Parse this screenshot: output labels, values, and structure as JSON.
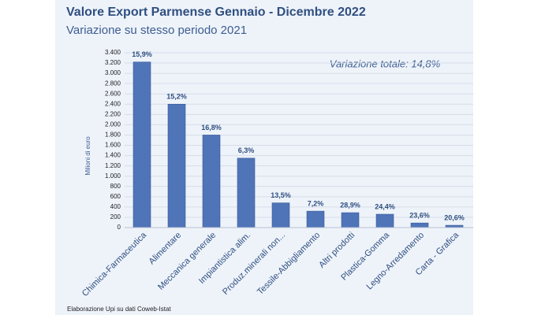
{
  "chart_data": {
    "type": "bar",
    "title": "Valore Export Parmense Gennaio - Dicembre 2022",
    "subtitle": "Variazione su stesso periodo 2021",
    "y_label": "Milioni di euro",
    "annotation": "Variazione totale: 14,8%",
    "source": "Elaborazione Upi su dati Coweb-Istat",
    "categories": [
      "Chimica-Farmaceutica",
      "Alimentare",
      "Meccanica generale",
      "Impiantistica alim.",
      "Produz.minerali non...",
      "Tessile-Abbigliamento",
      "Altri prodotti",
      "Plastica-Gomma",
      "Legno-Arredamento",
      "Carta - Grafica"
    ],
    "values": [
      3220,
      2400,
      1800,
      1350,
      480,
      320,
      290,
      260,
      90,
      45
    ],
    "bar_labels": [
      "15,9%",
      "15,2%",
      "16,8%",
      "6,3%",
      "13,5%",
      "7,2%",
      "28,9%",
      "24,4%",
      "23,6%",
      "20,6%"
    ],
    "color": "#4f74b8",
    "ylim": [
      0,
      3400
    ],
    "yticks": [
      0,
      200,
      400,
      600,
      800,
      {
        "value": 1000,
        "label": "1.000"
      },
      {
        "value": 1200,
        "label": "1.200"
      },
      {
        "value": 1400,
        "label": "1.400"
      },
      {
        "value": 1600,
        "label": "1.600"
      },
      {
        "value": 1800,
        "label": "1.800"
      },
      {
        "value": 2000,
        "label": "2.000"
      },
      {
        "value": 2200,
        "label": "2.200"
      },
      {
        "value": 2400,
        "label": "2.400"
      },
      {
        "value": 2600,
        "label": "2.600"
      },
      {
        "value": 2800,
        "label": "2.800"
      },
      {
        "value": 3000,
        "label": "3.000"
      },
      {
        "value": 3200,
        "label": "3.200"
      },
      {
        "value": 3400,
        "label": "3.400"
      }
    ],
    "grid": true
  }
}
